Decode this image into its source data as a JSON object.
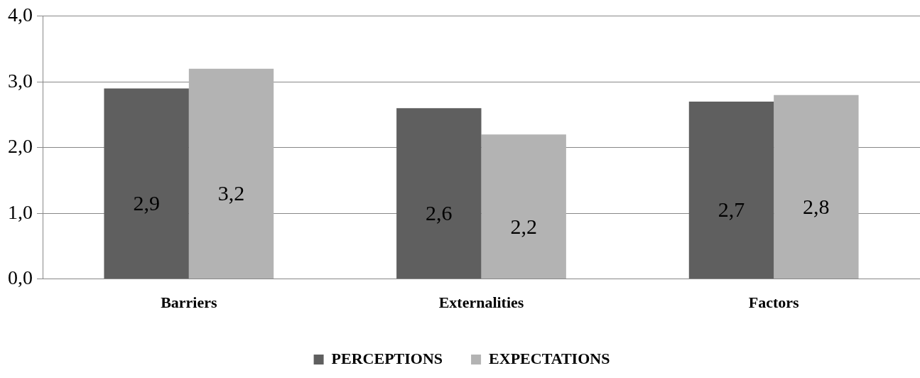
{
  "chart_data": {
    "type": "bar",
    "categories": [
      "Barriers",
      "Externalities",
      "Factors"
    ],
    "series": [
      {
        "name": "PERCEPTIONS",
        "color": "#5f5f5f",
        "values": [
          2.9,
          2.6,
          2.7
        ],
        "value_labels": [
          "2,9",
          "2,6",
          "2,7"
        ]
      },
      {
        "name": "EXPECTATIONS",
        "color": "#b3b3b3",
        "values": [
          3.2,
          2.2,
          2.8
        ],
        "value_labels": [
          "3,2",
          "2,2",
          "2,8"
        ]
      }
    ],
    "ylim": [
      0,
      4
    ],
    "yticks": [
      {
        "value": 0,
        "label": "0,0"
      },
      {
        "value": 1,
        "label": "1,0"
      },
      {
        "value": 2,
        "label": "2,0"
      },
      {
        "value": 3,
        "label": "3,0"
      },
      {
        "value": 4,
        "label": "4,0"
      }
    ],
    "grid": "y",
    "legend": "bottom"
  }
}
